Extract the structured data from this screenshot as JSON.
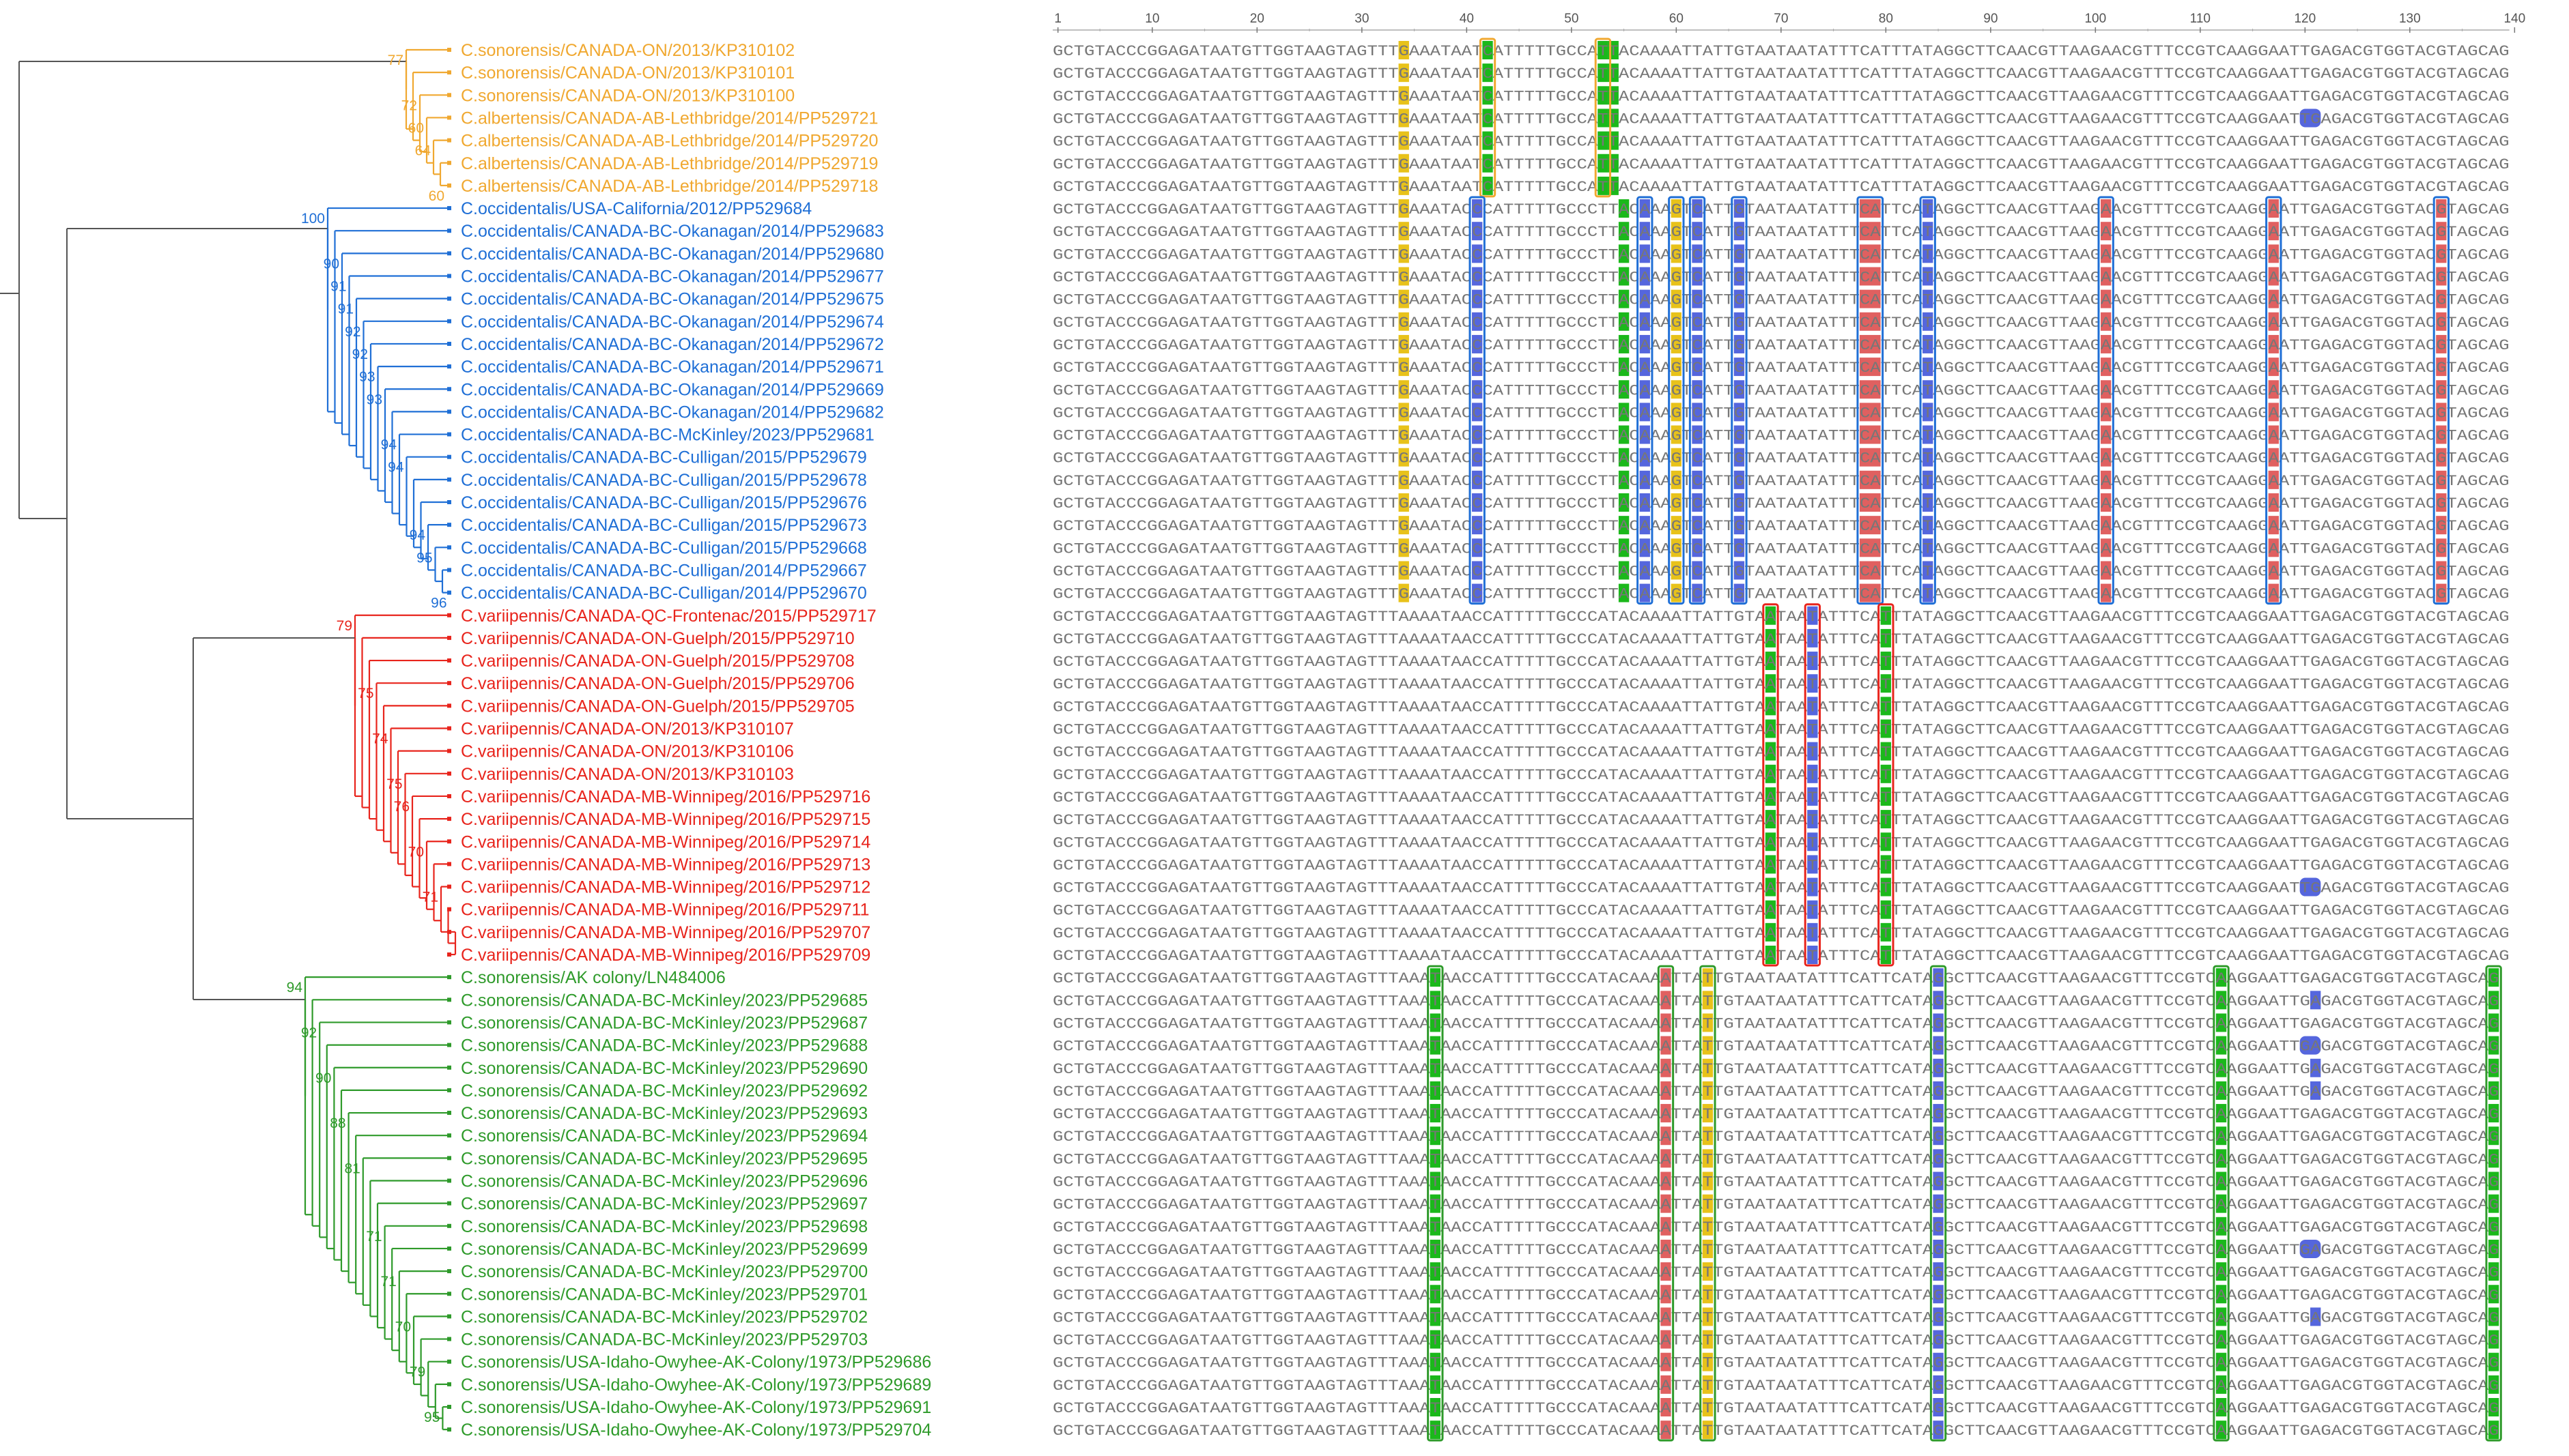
{
  "colors": {
    "orange": "#f0a830",
    "blue": "#1f6fd6",
    "red": "#e8241c",
    "green": "#2e9a2a",
    "tree_black": "#555555",
    "seq_text": "#777777",
    "mark_A": "#e06060",
    "mark_C": "#5566dd",
    "mark_G": "#e8c21a",
    "mark_T": "#1bb81b"
  },
  "clades": [
    {
      "id": "orange",
      "color": "orange",
      "taxa": [
        "C.sonorensis/CANADA-ON/2013/KP310102",
        "C.sonorensis/CANADA-ON/2013/KP310101",
        "C.sonorensis/CANADA-ON/2013/KP310100",
        "C.albertensis/CANADA-AB-Lethbridge/2014/PP529721",
        "C.albertensis/CANADA-AB-Lethbridge/2014/PP529720",
        "C.albertensis/CANADA-AB-Lethbridge/2014/PP529719",
        "C.albertensis/CANADA-AB-Lethbridge/2014/PP529718"
      ],
      "bootstraps": [
        {
          "row": 0,
          "value": "77"
        },
        {
          "row": 2,
          "value": "72"
        },
        {
          "row": 3,
          "value": "60"
        },
        {
          "row": 4,
          "value": "64"
        },
        {
          "row": 6,
          "value": "60"
        }
      ]
    },
    {
      "id": "blue",
      "color": "blue",
      "taxa": [
        "C.occidentalis/USA-California/2012/PP529684",
        "C.occidentalis/CANADA-BC-Okanagan/2014/PP529683",
        "C.occidentalis/CANADA-BC-Okanagan/2014/PP529680",
        "C.occidentalis/CANADA-BC-Okanagan/2014/PP529677",
        "C.occidentalis/CANADA-BC-Okanagan/2014/PP529675",
        "C.occidentalis/CANADA-BC-Okanagan/2014/PP529674",
        "C.occidentalis/CANADA-BC-Okanagan/2014/PP529672",
        "C.occidentalis/CANADA-BC-Okanagan/2014/PP529671",
        "C.occidentalis/CANADA-BC-Okanagan/2014/PP529669",
        "C.occidentalis/CANADA-BC-Okanagan/2014/PP529682",
        "C.occidentalis/CANADA-BC-McKinley/2023/PP529681",
        "C.occidentalis/CANADA-BC-Culligan/2015/PP529679",
        "C.occidentalis/CANADA-BC-Culligan/2015/PP529678",
        "C.occidentalis/CANADA-BC-Culligan/2015/PP529676",
        "C.occidentalis/CANADA-BC-Culligan/2015/PP529673",
        "C.occidentalis/CANADA-BC-Culligan/2015/PP529668",
        "C.occidentalis/CANADA-BC-Culligan/2014/PP529667",
        "C.occidentalis/CANADA-BC-Culligan/2014/PP529670"
      ],
      "bootstraps": [
        {
          "row": 0,
          "value": "100"
        },
        {
          "row": 2,
          "value": "90"
        },
        {
          "row": 3,
          "value": "91"
        },
        {
          "row": 4,
          "value": "91"
        },
        {
          "row": 5,
          "value": "92"
        },
        {
          "row": 6,
          "value": "92"
        },
        {
          "row": 7,
          "value": "93"
        },
        {
          "row": 8,
          "value": "93"
        },
        {
          "row": 10,
          "value": "94"
        },
        {
          "row": 11,
          "value": "94"
        },
        {
          "row": 14,
          "value": "94"
        },
        {
          "row": 15,
          "value": "95"
        },
        {
          "row": 17,
          "value": "96"
        }
      ]
    },
    {
      "id": "red",
      "color": "red",
      "taxa": [
        "C.variipennis/CANADA-QC-Frontenac/2015/PP529717",
        "C.variipennis/CANADA-ON-Guelph/2015/PP529710",
        "C.variipennis/CANADA-ON-Guelph/2015/PP529708",
        "C.variipennis/CANADA-ON-Guelph/2015/PP529706",
        "C.variipennis/CANADA-ON-Guelph/2015/PP529705",
        "C.variipennis/CANADA-ON/2013/KP310107",
        "C.variipennis/CANADA-ON/2013/KP310106",
        "C.variipennis/CANADA-ON/2013/KP310103",
        "C.variipennis/CANADA-MB-Winnipeg/2016/PP529716",
        "C.variipennis/CANADA-MB-Winnipeg/2016/PP529715",
        "C.variipennis/CANADA-MB-Winnipeg/2016/PP529714",
        "C.variipennis/CANADA-MB-Winnipeg/2016/PP529713",
        "C.variipennis/CANADA-MB-Winnipeg/2016/PP529712",
        "C.variipennis/CANADA-MB-Winnipeg/2016/PP529711",
        "C.variipennis/CANADA-MB-Winnipeg/2016/PP529707",
        "C.variipennis/CANADA-MB-Winnipeg/2016/PP529709"
      ],
      "bootstraps": [
        {
          "row": 0,
          "value": "79"
        },
        {
          "row": 3,
          "value": "75"
        },
        {
          "row": 5,
          "value": "74"
        },
        {
          "row": 7,
          "value": "75"
        },
        {
          "row": 8,
          "value": "76"
        },
        {
          "row": 10,
          "value": "70"
        },
        {
          "row": 12,
          "value": "71"
        }
      ]
    },
    {
      "id": "green",
      "color": "green",
      "taxa": [
        "C.sonorensis/AK colony/LN484006",
        "C.sonorensis/CANADA-BC-McKinley/2023/PP529685",
        "C.sonorensis/CANADA-BC-McKinley/2023/PP529687",
        "C.sonorensis/CANADA-BC-McKinley/2023/PP529688",
        "C.sonorensis/CANADA-BC-McKinley/2023/PP529690",
        "C.sonorensis/CANADA-BC-McKinley/2023/PP529692",
        "C.sonorensis/CANADA-BC-McKinley/2023/PP529693",
        "C.sonorensis/CANADA-BC-McKinley/2023/PP529694",
        "C.sonorensis/CANADA-BC-McKinley/2023/PP529695",
        "C.sonorensis/CANADA-BC-McKinley/2023/PP529696",
        "C.sonorensis/CANADA-BC-McKinley/2023/PP529697",
        "C.sonorensis/CANADA-BC-McKinley/2023/PP529698",
        "C.sonorensis/CANADA-BC-McKinley/2023/PP529699",
        "C.sonorensis/CANADA-BC-McKinley/2023/PP529700",
        "C.sonorensis/CANADA-BC-McKinley/2023/PP529701",
        "C.sonorensis/CANADA-BC-McKinley/2023/PP529702",
        "C.sonorensis/CANADA-BC-McKinley/2023/PP529703",
        "C.sonorensis/USA-Idaho-Owyhee-AK-Colony/1973/PP529686",
        "C.sonorensis/USA-Idaho-Owyhee-AK-Colony/1973/PP529689",
        "C.sonorensis/USA-Idaho-Owyhee-AK-Colony/1973/PP529691",
        "C.sonorensis/USA-Idaho-Owyhee-AK-Colony/1973/PP529704"
      ],
      "bootstraps": [
        {
          "row": 0,
          "value": "94"
        },
        {
          "row": 2,
          "value": "92"
        },
        {
          "row": 4,
          "value": "90"
        },
        {
          "row": 6,
          "value": "88"
        },
        {
          "row": 8,
          "value": "81"
        },
        {
          "row": 11,
          "value": "71"
        },
        {
          "row": 13,
          "value": "71"
        },
        {
          "row": 15,
          "value": "70"
        },
        {
          "row": 17,
          "value": "79"
        },
        {
          "row": 19,
          "value": "95"
        }
      ]
    }
  ],
  "ruler": {
    "ticks": [
      "1",
      "10",
      "20",
      "30",
      "40",
      "50",
      "60",
      "70",
      "80",
      "90",
      "100",
      "110",
      "120",
      "130",
      "140"
    ]
  },
  "sequences": {
    "orange": "GCTGTACCCGGAGATAATGTTGGTAAGTAGTTTGAAATAATCATTTTTGCCATTACAAAATTATTGTAATAATATTTCATTTATAGGCTTCAACGTTAAGAACGTTTCCGTCAAGGAATTGAGACGTGGTACGTAGCAG",
    "blue": "GCTGTACCCGGAGATAATGTTGGTAAGTAGTTTGAAATACCCATTTTTGCCCTTACAAAGTCATTGTAATAATATTTCATTCATAGGCTTCAACGTTAAGAACGTTTCCGTCAAGGAATTGAGACGTGGTACGTAGCAG",
    "red": "GCTGTACCCGGAGATAATGTTGGTAAGTAGTTTAAAATAACCATTTTTGCCCATACAAAATTATTGTAATAATATTTCATTTATAGGCTTCAACGTTAAGAACGTTTCCGTCAAGGAATTGAGACGTGGTACGTAGCAG",
    "green": "GCTGTACCCGGAGATAATGTTGGTAAGTAGTTTAAATAACCATTTTTGCCCATACAAAATTATTGTAATAATATTTCATTCATAGGCTTCAACGTTAAGAACGTTTCCGTCAAGGAATTGAGACGTGGTACGTAGCAG"
  },
  "mutation_columns": [
    {
      "clade": "orange",
      "col": 34,
      "base": "G",
      "row_from": 0,
      "row_to": 6,
      "box": false
    },
    {
      "clade": "orange",
      "col": 42,
      "base": "T",
      "row_from": 0,
      "row_to": 6,
      "box": true
    },
    {
      "clade": "orange",
      "col": 53,
      "base": "T",
      "row_from": 0,
      "row_to": 6,
      "box": true
    },
    {
      "clade": "orange",
      "col": 54,
      "base": "T",
      "row_from": 0,
      "row_to": 6,
      "box": false
    },
    {
      "clade": "orange",
      "col": 120,
      "base": "CC",
      "row_from": 3,
      "row_to": 3,
      "box": false
    },
    {
      "clade": "blue",
      "col": 34,
      "base": "G",
      "row_from": 0,
      "row_to": 17,
      "box": false
    },
    {
      "clade": "blue",
      "col": 41,
      "base": "C",
      "row_from": 0,
      "row_to": 17,
      "box": true
    },
    {
      "clade": "blue",
      "col": 55,
      "base": "T",
      "row_from": 0,
      "row_to": 17,
      "box": false
    },
    {
      "clade": "blue",
      "col": 57,
      "base": "C",
      "row_from": 0,
      "row_to": 17,
      "box": true
    },
    {
      "clade": "blue",
      "col": 60,
      "base": "G",
      "row_from": 0,
      "row_to": 17,
      "box": true
    },
    {
      "clade": "blue",
      "col": 62,
      "base": "C",
      "row_from": 0,
      "row_to": 17,
      "box": true
    },
    {
      "clade": "blue",
      "col": 66,
      "base": "C",
      "row_from": 0,
      "row_to": 17,
      "box": true
    },
    {
      "clade": "blue",
      "col": 78,
      "base": "AA",
      "row_from": 0,
      "row_to": 17,
      "box": true
    },
    {
      "clade": "blue",
      "col": 84,
      "base": "C",
      "row_from": 0,
      "row_to": 17,
      "box": true
    },
    {
      "clade": "blue",
      "col": 101,
      "base": "A",
      "row_from": 0,
      "row_to": 17,
      "box": true
    },
    {
      "clade": "blue",
      "col": 117,
      "base": "A",
      "row_from": 0,
      "row_to": 17,
      "box": true
    },
    {
      "clade": "blue",
      "col": 133,
      "base": "A",
      "row_from": 0,
      "row_to": 17,
      "box": true
    },
    {
      "clade": "red",
      "col": 69,
      "base": "T",
      "row_from": 0,
      "row_to": 15,
      "box": true
    },
    {
      "clade": "red",
      "col": 73,
      "base": "C",
      "row_from": 0,
      "row_to": 15,
      "box": true
    },
    {
      "clade": "red",
      "col": 80,
      "base": "T",
      "row_from": 0,
      "row_to": 15,
      "box": true
    },
    {
      "clade": "red",
      "col": 120,
      "base": "CC",
      "row_from": 12,
      "row_to": 12,
      "box": false
    },
    {
      "clade": "green",
      "col": 37,
      "base": "T",
      "row_from": 0,
      "row_to": 20,
      "box": true
    },
    {
      "clade": "green",
      "col": 59,
      "base": "A",
      "row_from": 0,
      "row_to": 20,
      "box": true
    },
    {
      "clade": "green",
      "col": 63,
      "base": "G",
      "row_from": 0,
      "row_to": 20,
      "box": true
    },
    {
      "clade": "green",
      "col": 85,
      "base": "C",
      "row_from": 0,
      "row_to": 20,
      "box": true
    },
    {
      "clade": "green",
      "col": 112,
      "base": "T",
      "row_from": 0,
      "row_to": 20,
      "box": true
    },
    {
      "clade": "green",
      "col": 138,
      "base": "T",
      "row_from": 0,
      "row_to": 20,
      "box": true
    },
    {
      "clade": "green",
      "col": 121,
      "base": "C",
      "row_from": 1,
      "row_to": 1,
      "box": false
    },
    {
      "clade": "green",
      "col": 120,
      "base": "CC",
      "row_from": 3,
      "row_to": 3,
      "box": false
    },
    {
      "clade": "green",
      "col": 121,
      "base": "C",
      "row_from": 4,
      "row_to": 5,
      "box": false
    },
    {
      "clade": "green",
      "col": 120,
      "base": "CC",
      "row_from": 12,
      "row_to": 12,
      "box": false
    },
    {
      "clade": "green",
      "col": 121,
      "base": "C",
      "row_from": 15,
      "row_to": 15,
      "box": false
    }
  ]
}
